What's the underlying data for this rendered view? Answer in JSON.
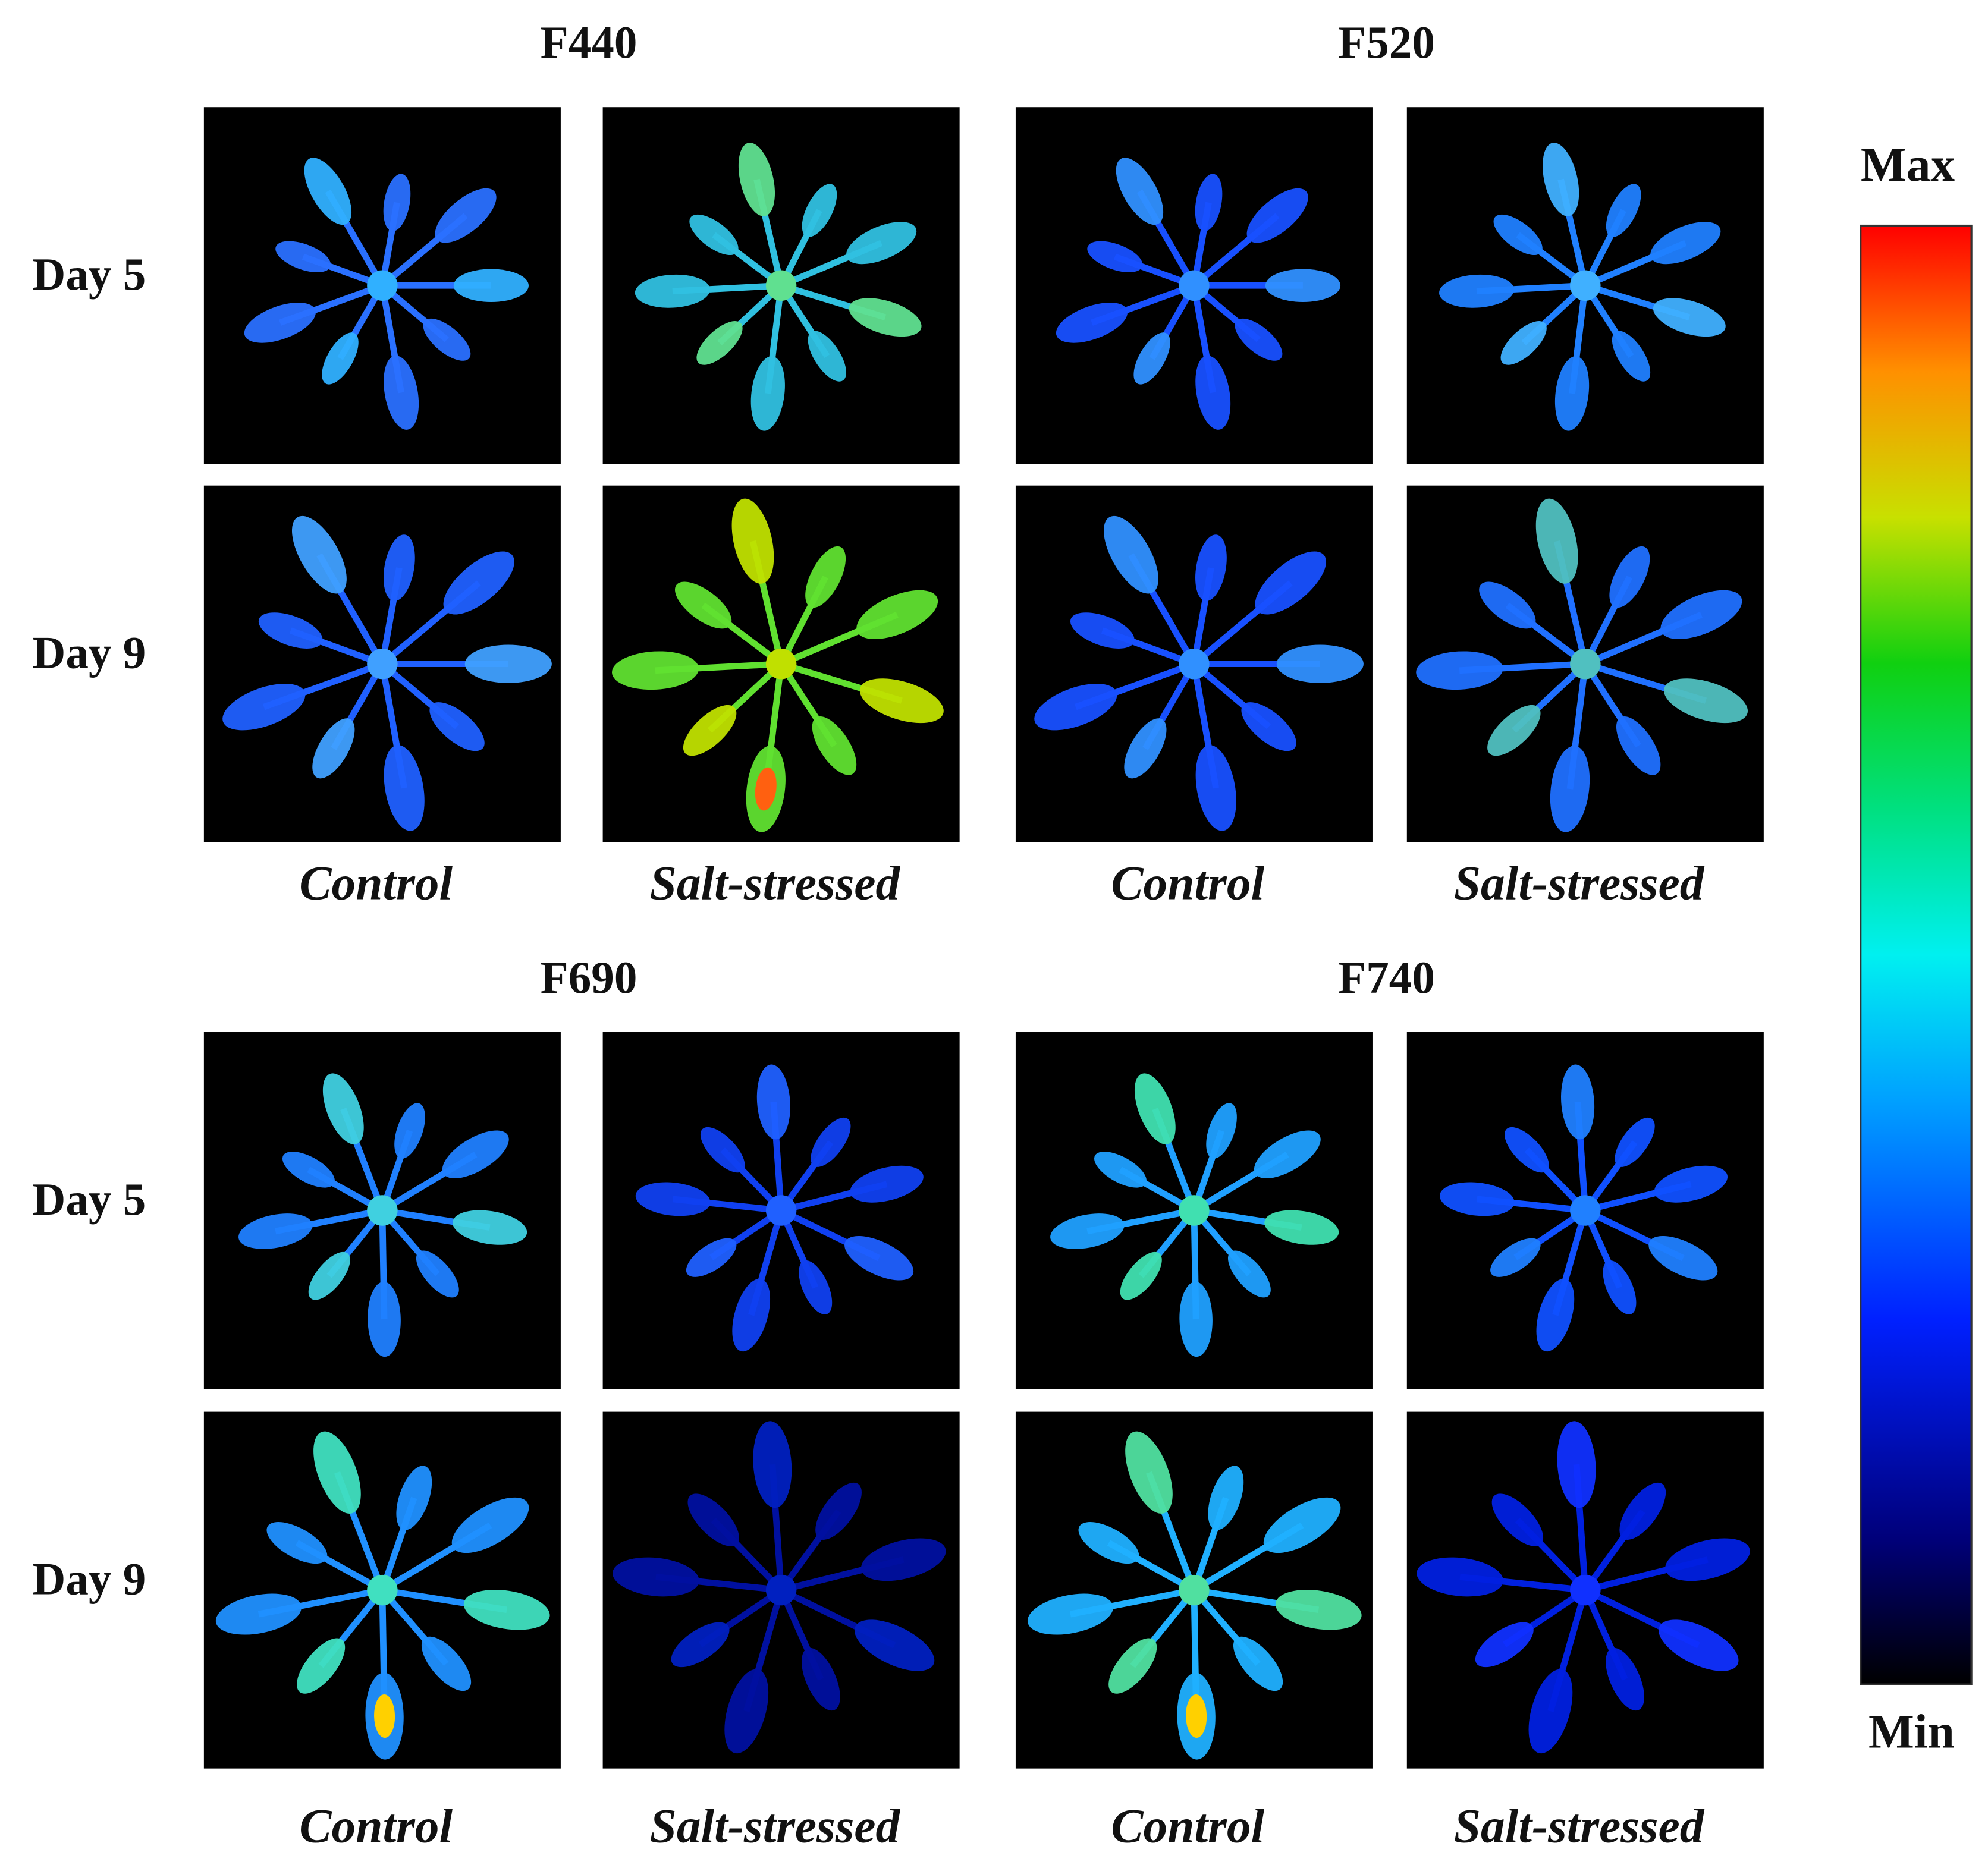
{
  "groups": [
    {
      "row_labels": [
        "Day 5",
        "Day 9"
      ],
      "panels": [
        {
          "title": "F440",
          "columns": [
            "Control",
            "Salt-stressed"
          ]
        },
        {
          "title": "F520",
          "columns": [
            "Control",
            "Salt-stressed"
          ]
        }
      ]
    },
    {
      "row_labels": [
        "Day 5",
        "Day 9"
      ],
      "panels": [
        {
          "title": "F690",
          "columns": [
            "Control",
            "Salt-stressed"
          ]
        },
        {
          "title": "F740",
          "columns": [
            "Control",
            "Salt-stressed"
          ]
        }
      ]
    }
  ],
  "colorbar": {
    "max_label": "Max",
    "min_label": "Min"
  }
}
